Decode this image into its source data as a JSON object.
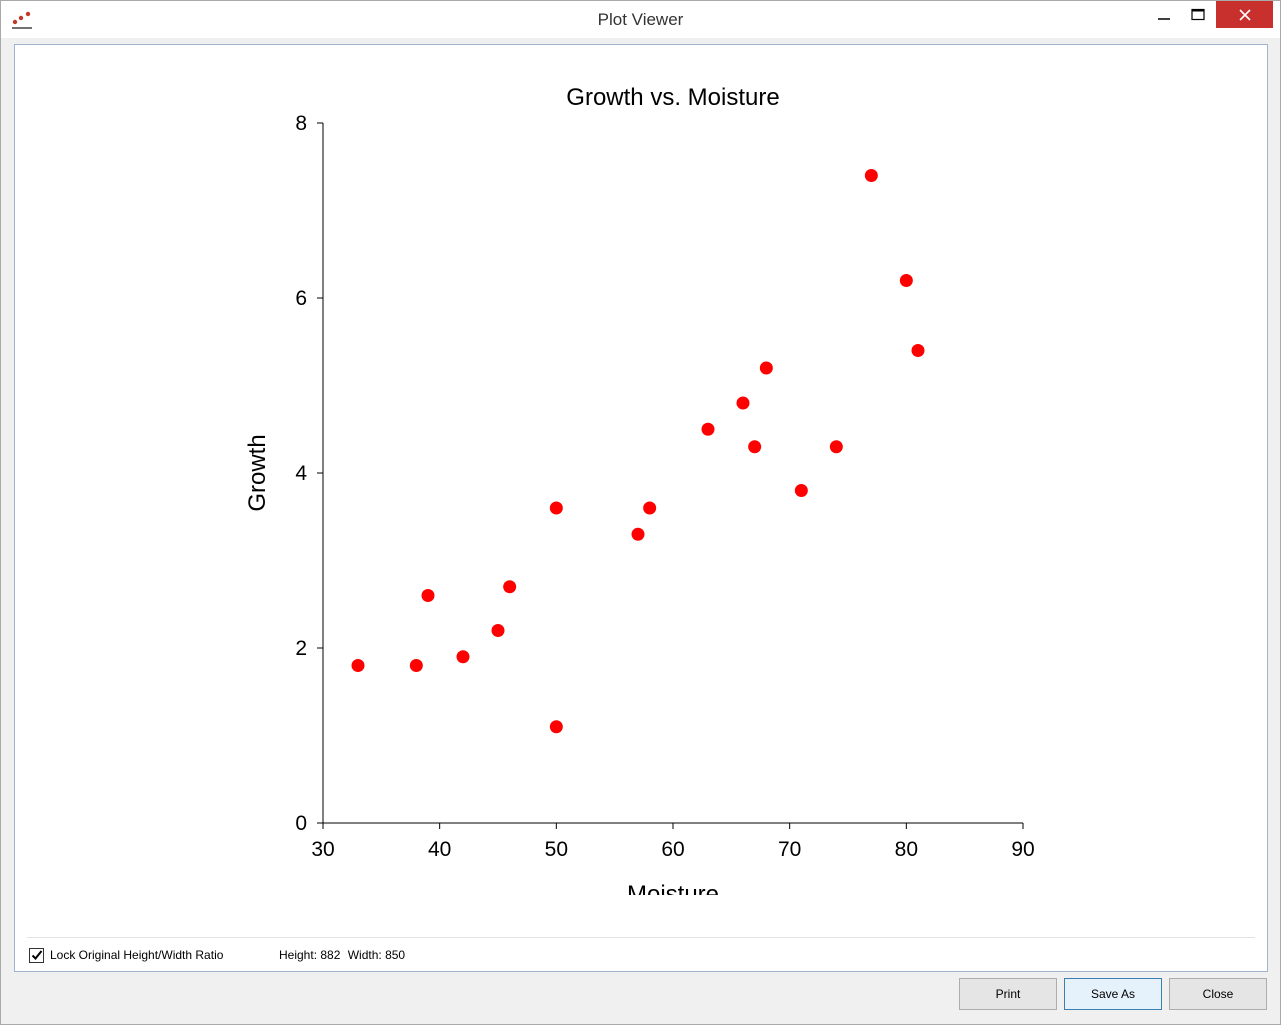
{
  "window": {
    "title": "Plot Viewer",
    "icon": "scatter-app-icon",
    "controls": {
      "minimize": "minimize-icon",
      "maximize": "maximize-icon",
      "close": "close-icon"
    },
    "close_color": "#c7302c"
  },
  "chart_data": {
    "type": "scatter",
    "title": "Growth vs. Moisture",
    "xlabel": "Moisture",
    "ylabel": "Growth",
    "xlim": [
      30,
      90
    ],
    "ylim": [
      0,
      8
    ],
    "xticks": [
      30,
      40,
      50,
      60,
      70,
      80,
      90
    ],
    "yticks": [
      0,
      2,
      4,
      6,
      8
    ],
    "grid": false,
    "marker_color": "#ff0000",
    "points": [
      {
        "x": 33,
        "y": 1.8
      },
      {
        "x": 38,
        "y": 1.8
      },
      {
        "x": 39,
        "y": 2.6
      },
      {
        "x": 42,
        "y": 1.9
      },
      {
        "x": 45,
        "y": 2.2
      },
      {
        "x": 46,
        "y": 2.7
      },
      {
        "x": 50,
        "y": 3.6
      },
      {
        "x": 50,
        "y": 1.1
      },
      {
        "x": 57,
        "y": 3.3
      },
      {
        "x": 58,
        "y": 3.6
      },
      {
        "x": 63,
        "y": 4.5
      },
      {
        "x": 66,
        "y": 4.8
      },
      {
        "x": 67,
        "y": 4.3
      },
      {
        "x": 68,
        "y": 5.2
      },
      {
        "x": 71,
        "y": 3.8
      },
      {
        "x": 74,
        "y": 4.3
      },
      {
        "x": 77,
        "y": 7.4
      },
      {
        "x": 80,
        "y": 6.2
      },
      {
        "x": 81,
        "y": 5.4
      }
    ]
  },
  "options": {
    "lock_ratio_label": "Lock Original Height/Width Ratio",
    "lock_ratio_checked": true,
    "height_text": "Height: 882",
    "width_text": "Width: 850"
  },
  "buttons": {
    "print": "Print",
    "save_as": "Save As",
    "close": "Close"
  }
}
